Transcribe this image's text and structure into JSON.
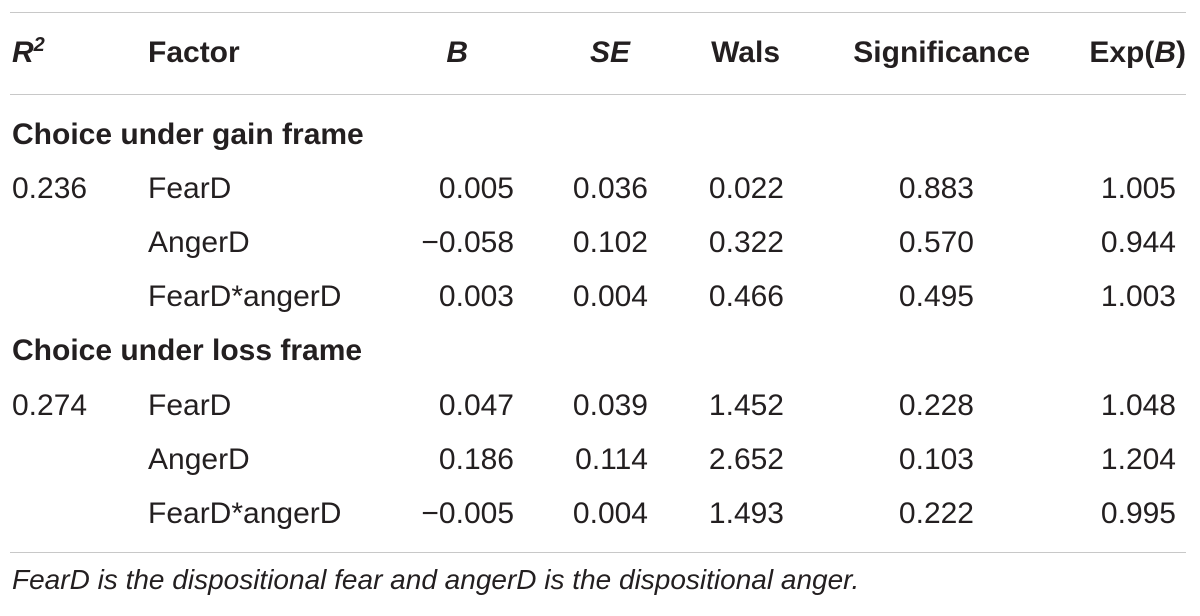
{
  "table": {
    "headers": {
      "r2_letter": "R",
      "r2_sup": "2",
      "factor": "Factor",
      "b": "B",
      "se": "SE",
      "wals": "Wals",
      "significance": "Significance",
      "expb_prefix": "Exp(",
      "expb_b": "B",
      "expb_suffix": ")"
    },
    "sections": [
      {
        "title": "Choice under gain frame",
        "r2": "0.236",
        "rows": [
          {
            "factor": "FearD",
            "b": "0.005",
            "se": "0.036",
            "wals": "0.022",
            "sig": "0.883",
            "expb": "1.005"
          },
          {
            "factor": "AngerD",
            "b": "−0.058",
            "se": "0.102",
            "wals": "0.322",
            "sig": "0.570",
            "expb": "0.944"
          },
          {
            "factor": "FearD*angerD",
            "b": "0.003",
            "se": "0.004",
            "wals": "0.466",
            "sig": "0.495",
            "expb": "1.003"
          }
        ]
      },
      {
        "title": "Choice under loss frame",
        "r2": "0.274",
        "rows": [
          {
            "factor": "FearD",
            "b": "0.047",
            "se": "0.039",
            "wals": "1.452",
            "sig": "0.228",
            "expb": "1.048"
          },
          {
            "factor": "AngerD",
            "b": "0.186",
            "se": "0.114",
            "wals": "2.652",
            "sig": "0.103",
            "expb": "1.204"
          },
          {
            "factor": "FearD*angerD",
            "b": "−0.005",
            "se": "0.004",
            "wals": "1.493",
            "sig": "0.222",
            "expb": "0.995"
          }
        ]
      }
    ],
    "footnote": "FearD is the dispositional fear and angerD is the dispositional anger."
  }
}
